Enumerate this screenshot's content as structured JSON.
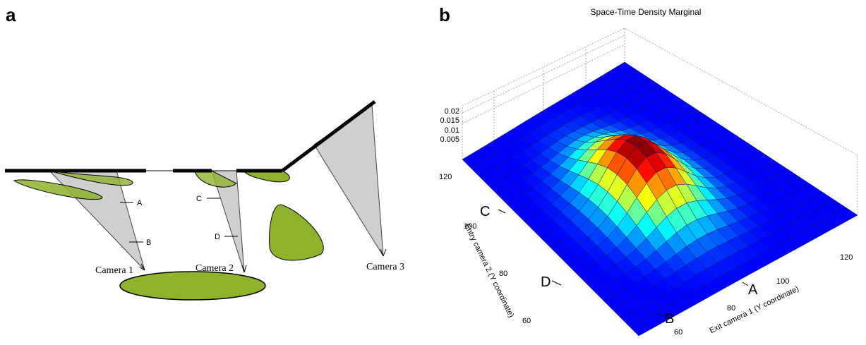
{
  "panel_a": {
    "label": "a",
    "cameras": [
      "Camera 1",
      "Camera 2",
      "Camera 3"
    ],
    "markers": [
      "A",
      "B",
      "C",
      "D"
    ]
  },
  "panel_b": {
    "label": "b",
    "title": "Space-Time Density Marginal",
    "z_ticks": [
      "0.02",
      "0.015",
      "0.01",
      "0.005"
    ],
    "entry_ticks": [
      "120",
      "100",
      "80",
      "60"
    ],
    "exit_ticks": [
      "60",
      "80",
      "100",
      "120"
    ],
    "entry_markers": [
      "C",
      "D"
    ],
    "exit_markers": [
      "A",
      "B"
    ],
    "entry_label": "Entry camera 2 (Y coordinate)",
    "exit_label": "Exit camera 1 (Y coordinate)"
  }
}
